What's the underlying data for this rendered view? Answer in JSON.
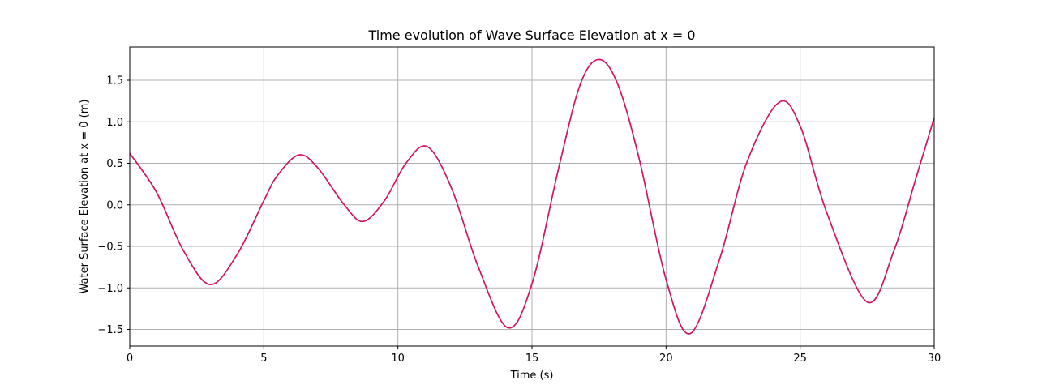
{
  "chart_data": {
    "type": "line",
    "title": "Time evolution of Wave Surface Elevation at x = 0",
    "xlabel": "Time (s)",
    "ylabel": "Water Surface Elevation at x = 0 (m)",
    "xlim": [
      0,
      30
    ],
    "ylim": [
      -1.7,
      1.9
    ],
    "xticks": [
      0,
      5,
      10,
      15,
      20,
      25,
      30
    ],
    "yticks": [
      -1.5,
      -1.0,
      -0.5,
      0.0,
      0.5,
      1.0,
      1.5
    ],
    "xtick_labels": [
      "0",
      "5",
      "10",
      "15",
      "20",
      "25",
      "30"
    ],
    "ytick_labels": [
      "−1.5",
      "−1.0",
      "−0.5",
      "0.0",
      "0.5",
      "1.0",
      "1.5"
    ],
    "grid": true,
    "series": [
      {
        "color": "#1f1fb4",
        "x": [
          0,
          1.0,
          2.0,
          3.0,
          4.0,
          5.0,
          5.5,
          6.3,
          7.0,
          8.0,
          8.7,
          9.5,
          10.3,
          11.1,
          12.0,
          13.0,
          14.1,
          15.0,
          16.0,
          16.8,
          17.5,
          18.2,
          19.0,
          20.0,
          20.9,
          22.0,
          23.0,
          24.2,
          25.0,
          26.0,
          27.5,
          28.5,
          29.3,
          30.0
        ],
        "y": [
          0.62,
          0.15,
          -0.55,
          -0.96,
          -0.6,
          0.05,
          0.35,
          0.6,
          0.45,
          0.0,
          -0.2,
          0.05,
          0.5,
          0.7,
          0.2,
          -0.75,
          -1.48,
          -0.95,
          0.45,
          1.45,
          1.75,
          1.45,
          0.55,
          -0.9,
          -1.55,
          -0.65,
          0.5,
          1.23,
          0.95,
          -0.1,
          -1.17,
          -0.55,
          0.3,
          1.05
        ]
      },
      {
        "color": "#e0105a",
        "x": [
          0,
          1.0,
          2.0,
          3.0,
          4.0,
          5.0,
          5.5,
          6.3,
          7.0,
          8.0,
          8.7,
          9.5,
          10.3,
          11.1,
          12.0,
          13.0,
          14.1,
          15.0,
          16.0,
          16.8,
          17.5,
          18.2,
          19.0,
          20.0,
          20.9,
          22.0,
          23.0,
          24.2,
          25.0,
          26.0,
          27.5,
          28.5,
          29.3,
          30.0
        ],
        "y": [
          0.62,
          0.15,
          -0.55,
          -0.96,
          -0.6,
          0.05,
          0.35,
          0.6,
          0.45,
          0.0,
          -0.2,
          0.05,
          0.5,
          0.7,
          0.2,
          -0.75,
          -1.48,
          -0.95,
          0.45,
          1.45,
          1.75,
          1.45,
          0.55,
          -0.9,
          -1.55,
          -0.65,
          0.5,
          1.23,
          0.95,
          -0.1,
          -1.17,
          -0.55,
          0.3,
          1.05
        ]
      }
    ]
  }
}
